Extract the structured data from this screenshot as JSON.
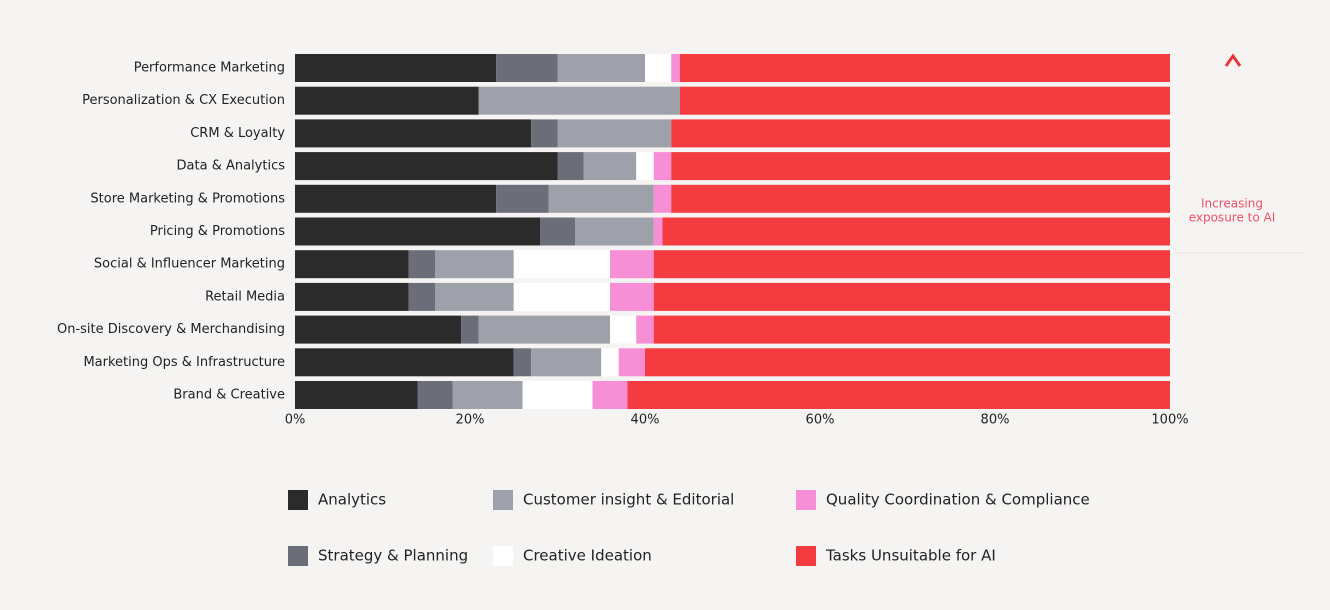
{
  "chart_data": {
    "type": "bar",
    "orientation": "horizontal",
    "stacked": true,
    "categories": [
      "Performance Marketing",
      "Personalization & CX Execution",
      "CRM & Loyalty",
      "Data & Analytics",
      "Store Marketing & Promotions",
      "Pricing & Promotions",
      "Social & Influencer Marketing",
      "Retail Media",
      "On-site Discovery & Merchandising",
      "Marketing Ops & Infrastructure",
      "Brand & Creative"
    ],
    "series": [
      {
        "name": "Analytics",
        "color": "#2b2b2b",
        "values": [
          23,
          21,
          27,
          30,
          23,
          28,
          13,
          13,
          19,
          25,
          14
        ]
      },
      {
        "name": "Strategy & Planning",
        "color": "#6b6e78",
        "values": [
          7,
          0,
          3,
          3,
          6,
          4,
          3,
          3,
          2,
          2,
          4
        ]
      },
      {
        "name": "Customer insight & Editorial",
        "color": "#9ea1aa",
        "values": [
          10,
          23,
          13,
          6,
          12,
          9,
          9,
          9,
          15,
          8,
          8
        ]
      },
      {
        "name": "Creative Ideation",
        "color": "#ffffff",
        "values": [
          3,
          0,
          0,
          2,
          0,
          0,
          11,
          11,
          3,
          2,
          8
        ]
      },
      {
        "name": "Quality Coordination & Compliance",
        "color": "#f78fd6",
        "values": [
          1,
          0,
          0,
          2,
          2,
          1,
          5,
          5,
          2,
          3,
          4
        ]
      },
      {
        "name": "Tasks Unsuitable for AI",
        "color": "#f43b3f",
        "values": [
          56,
          56,
          57,
          57,
          57,
          58,
          59,
          59,
          59,
          60,
          62
        ]
      }
    ],
    "xlim": [
      0,
      100
    ],
    "xticks": [
      {
        "value": 0,
        "label": "0%"
      },
      {
        "value": 20,
        "label": "20%"
      },
      {
        "value": 40,
        "label": "40%"
      },
      {
        "value": 60,
        "label": "60%"
      },
      {
        "value": 80,
        "label": "80%"
      },
      {
        "value": 100,
        "label": "100%"
      }
    ],
    "annotation": [
      "Increasing",
      "exposure to AI"
    ],
    "grid": false
  }
}
